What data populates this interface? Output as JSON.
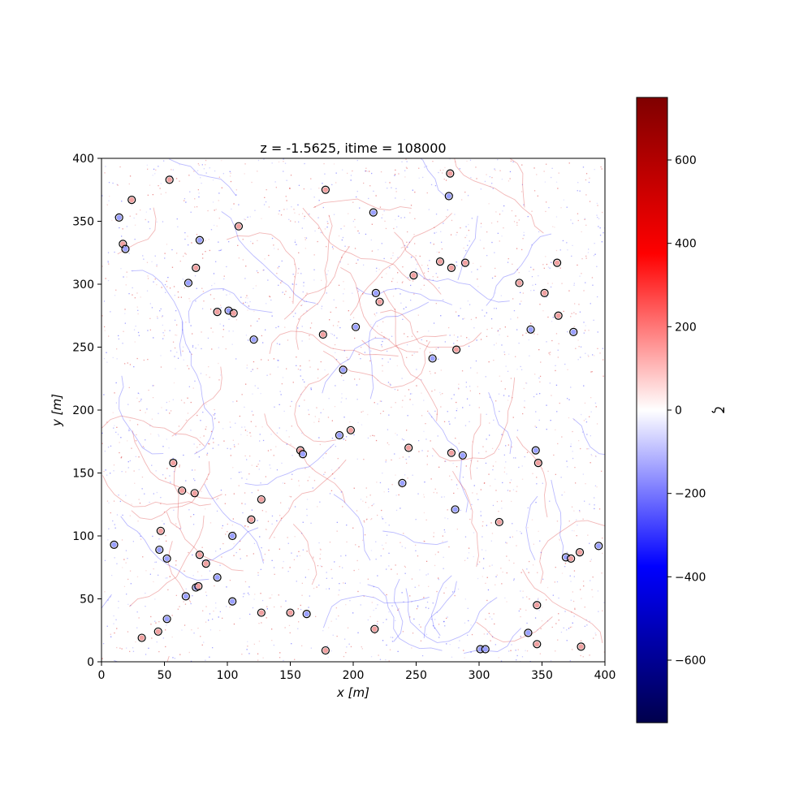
{
  "chart_data": {
    "type": "heatmap",
    "title": "z = -1.5625, itime = 108000",
    "xlabel": "x [m]",
    "ylabel": "y [m]",
    "xlim": [
      0,
      400
    ],
    "ylim": [
      0,
      400
    ],
    "x_ticks": [
      "0",
      "50",
      "100",
      "150",
      "200",
      "250",
      "300",
      "350",
      "400"
    ],
    "y_ticks": [
      "0",
      "50",
      "100",
      "150",
      "200",
      "250",
      "300",
      "350",
      "400"
    ],
    "colorbar": {
      "label": "ζ",
      "range": [
        -750,
        750
      ],
      "ticks": [
        "600",
        "400",
        "200",
        "0",
        "−200",
        "−400",
        "−600"
      ],
      "tick_values": [
        600,
        400,
        200,
        0,
        -200,
        -400,
        -600
      ],
      "colormap": "seismic"
    },
    "vortices": [
      {
        "x": 54,
        "y": 383,
        "sign": "pos"
      },
      {
        "x": 24,
        "y": 367,
        "sign": "pos"
      },
      {
        "x": 14,
        "y": 353,
        "sign": "neg"
      },
      {
        "x": 17,
        "y": 332,
        "sign": "pos"
      },
      {
        "x": 19,
        "y": 328,
        "sign": "neg"
      },
      {
        "x": 78,
        "y": 335,
        "sign": "neg"
      },
      {
        "x": 109,
        "y": 346,
        "sign": "pos"
      },
      {
        "x": 75,
        "y": 313,
        "sign": "pos"
      },
      {
        "x": 69,
        "y": 301,
        "sign": "neg"
      },
      {
        "x": 92,
        "y": 278,
        "sign": "pos"
      },
      {
        "x": 101,
        "y": 279,
        "sign": "neg"
      },
      {
        "x": 105,
        "y": 277,
        "sign": "pos"
      },
      {
        "x": 121,
        "y": 256,
        "sign": "neg"
      },
      {
        "x": 178,
        "y": 375,
        "sign": "pos"
      },
      {
        "x": 216,
        "y": 357,
        "sign": "neg"
      },
      {
        "x": 277,
        "y": 388,
        "sign": "pos"
      },
      {
        "x": 276,
        "y": 370,
        "sign": "neg"
      },
      {
        "x": 269,
        "y": 318,
        "sign": "pos"
      },
      {
        "x": 278,
        "y": 313,
        "sign": "pos"
      },
      {
        "x": 289,
        "y": 317,
        "sign": "pos"
      },
      {
        "x": 248,
        "y": 307,
        "sign": "pos"
      },
      {
        "x": 218,
        "y": 293,
        "sign": "neg"
      },
      {
        "x": 221,
        "y": 286,
        "sign": "pos"
      },
      {
        "x": 202,
        "y": 266,
        "sign": "neg"
      },
      {
        "x": 176,
        "y": 260,
        "sign": "pos"
      },
      {
        "x": 192,
        "y": 232,
        "sign": "neg"
      },
      {
        "x": 263,
        "y": 241,
        "sign": "neg"
      },
      {
        "x": 282,
        "y": 248,
        "sign": "pos"
      },
      {
        "x": 332,
        "y": 301,
        "sign": "pos"
      },
      {
        "x": 352,
        "y": 293,
        "sign": "pos"
      },
      {
        "x": 362,
        "y": 317,
        "sign": "pos"
      },
      {
        "x": 363,
        "y": 275,
        "sign": "pos"
      },
      {
        "x": 341,
        "y": 264,
        "sign": "neg"
      },
      {
        "x": 375,
        "y": 262,
        "sign": "neg"
      },
      {
        "x": 198,
        "y": 184,
        "sign": "pos"
      },
      {
        "x": 189,
        "y": 180,
        "sign": "neg"
      },
      {
        "x": 158,
        "y": 168,
        "sign": "pos"
      },
      {
        "x": 160,
        "y": 165,
        "sign": "neg"
      },
      {
        "x": 244,
        "y": 170,
        "sign": "pos"
      },
      {
        "x": 278,
        "y": 166,
        "sign": "pos"
      },
      {
        "x": 287,
        "y": 164,
        "sign": "neg"
      },
      {
        "x": 239,
        "y": 142,
        "sign": "neg"
      },
      {
        "x": 345,
        "y": 168,
        "sign": "neg"
      },
      {
        "x": 347,
        "y": 158,
        "sign": "pos"
      },
      {
        "x": 281,
        "y": 121,
        "sign": "neg"
      },
      {
        "x": 316,
        "y": 111,
        "sign": "pos"
      },
      {
        "x": 57,
        "y": 158,
        "sign": "pos"
      },
      {
        "x": 64,
        "y": 136,
        "sign": "pos"
      },
      {
        "x": 74,
        "y": 134,
        "sign": "pos"
      },
      {
        "x": 127,
        "y": 129,
        "sign": "pos"
      },
      {
        "x": 119,
        "y": 113,
        "sign": "pos"
      },
      {
        "x": 104,
        "y": 100,
        "sign": "neg"
      },
      {
        "x": 10,
        "y": 93,
        "sign": "neg"
      },
      {
        "x": 47,
        "y": 104,
        "sign": "pos"
      },
      {
        "x": 46,
        "y": 89,
        "sign": "neg"
      },
      {
        "x": 52,
        "y": 82,
        "sign": "neg"
      },
      {
        "x": 78,
        "y": 85,
        "sign": "pos"
      },
      {
        "x": 83,
        "y": 78,
        "sign": "pos"
      },
      {
        "x": 92,
        "y": 67,
        "sign": "neg"
      },
      {
        "x": 75,
        "y": 59,
        "sign": "neg"
      },
      {
        "x": 77,
        "y": 60,
        "sign": "pos"
      },
      {
        "x": 67,
        "y": 52,
        "sign": "neg"
      },
      {
        "x": 104,
        "y": 48,
        "sign": "neg"
      },
      {
        "x": 127,
        "y": 39,
        "sign": "pos"
      },
      {
        "x": 150,
        "y": 39,
        "sign": "pos"
      },
      {
        "x": 163,
        "y": 38,
        "sign": "neg"
      },
      {
        "x": 52,
        "y": 34,
        "sign": "neg"
      },
      {
        "x": 45,
        "y": 24,
        "sign": "pos"
      },
      {
        "x": 32,
        "y": 19,
        "sign": "pos"
      },
      {
        "x": 178,
        "y": 9,
        "sign": "pos"
      },
      {
        "x": 217,
        "y": 26,
        "sign": "pos"
      },
      {
        "x": 301,
        "y": 10,
        "sign": "neg"
      },
      {
        "x": 305,
        "y": 10,
        "sign": "neg"
      },
      {
        "x": 339,
        "y": 23,
        "sign": "neg"
      },
      {
        "x": 346,
        "y": 14,
        "sign": "pos"
      },
      {
        "x": 346,
        "y": 45,
        "sign": "pos"
      },
      {
        "x": 369,
        "y": 83,
        "sign": "neg"
      },
      {
        "x": 373,
        "y": 82,
        "sign": "pos"
      },
      {
        "x": 380,
        "y": 87,
        "sign": "pos"
      },
      {
        "x": 395,
        "y": 92,
        "sign": "neg"
      },
      {
        "x": 381,
        "y": 12,
        "sign": "pos"
      }
    ]
  }
}
